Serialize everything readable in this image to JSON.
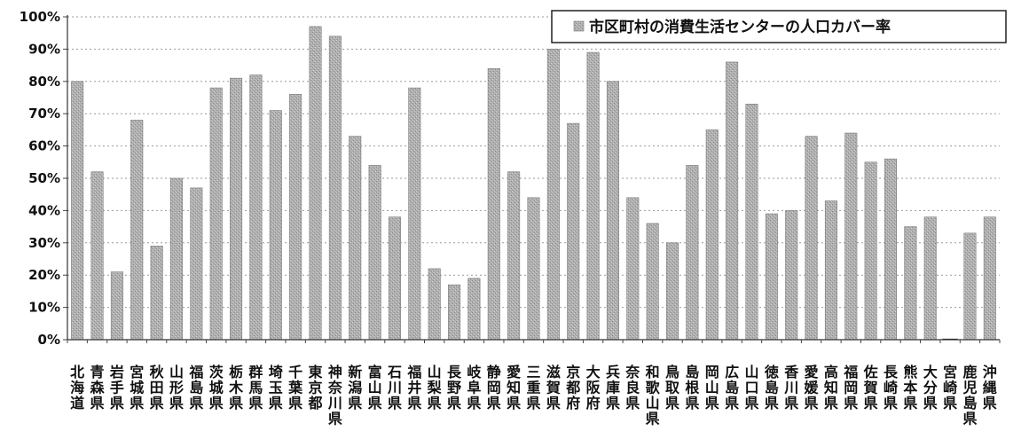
{
  "chart_data": {
    "type": "bar",
    "ylim": [
      0,
      100
    ],
    "yticks": [
      "0%",
      "10%",
      "20%",
      "30%",
      "40%",
      "50%",
      "60%",
      "70%",
      "80%",
      "90%",
      "100%"
    ],
    "legend": "top-right",
    "grid": true,
    "bar_color": "#a8a8a8",
    "series": [
      {
        "name": "市区町村の消費生活センターの人口カバー率",
        "values": [
          80,
          52,
          21,
          68,
          29,
          50,
          47,
          78,
          81,
          82,
          71,
          76,
          97,
          94,
          63,
          54,
          38,
          78,
          22,
          17,
          19,
          84,
          52,
          44,
          90,
          67,
          89,
          80,
          44,
          36,
          30,
          54,
          65,
          86,
          73,
          39,
          40,
          63,
          43,
          64,
          55,
          56,
          35,
          38,
          0,
          33,
          38
        ]
      }
    ],
    "categories": [
      "北海道",
      "青森県",
      "岩手県",
      "宮城県",
      "秋田県",
      "山形県",
      "福島県",
      "茨城県",
      "栃木県",
      "群馬県",
      "埼玉県",
      "千葉県",
      "東京都",
      "神奈川県",
      "新潟県",
      "富山県",
      "石川県",
      "福井県",
      "山梨県",
      "長野県",
      "岐阜県",
      "静岡県",
      "愛知県",
      "三重県",
      "滋賀県",
      "京都府",
      "大阪府",
      "兵庫県",
      "奈良県",
      "和歌山県",
      "鳥取県",
      "島根県",
      "岡山県",
      "広島県",
      "山口県",
      "徳島県",
      "香川県",
      "愛媛県",
      "高知県",
      "福岡県",
      "佐賀県",
      "長崎県",
      "熊本県",
      "大分県",
      "宮崎県",
      "鹿児島県",
      "沖縄県"
    ]
  }
}
